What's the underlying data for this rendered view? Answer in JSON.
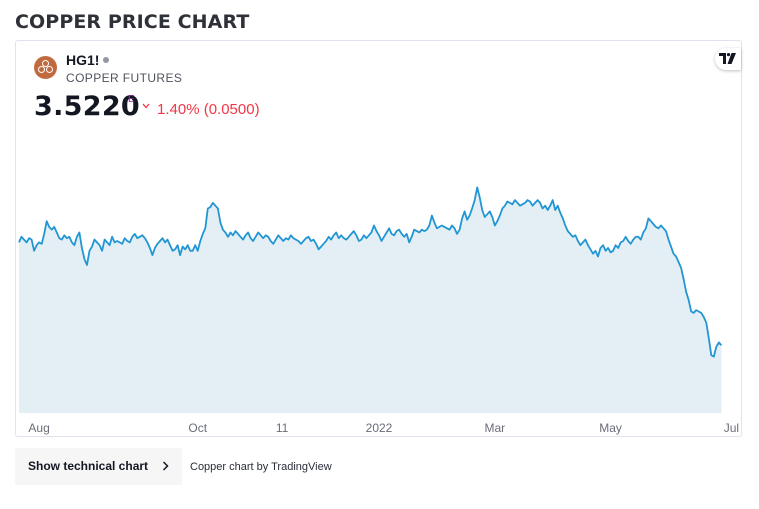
{
  "page": {
    "title": "COPPER PRICE CHART"
  },
  "widget": {
    "symbol": "HG1!",
    "description": "COPPER FUTURES",
    "price": "3.5220",
    "price_suffix": "E",
    "change_direction": "down",
    "change": "1.40% (0.0500)",
    "tv_logo_icon": "tradingview-logo-icon"
  },
  "footer": {
    "button_label": "Show technical chart",
    "button_icon": "chevron-right-icon",
    "attribution": "Copper chart by TradingView"
  },
  "colors": {
    "line": "#2196d3",
    "area": "#e4eff5",
    "down": "#f23645",
    "logo": "#c26a3f"
  },
  "chart_data": {
    "type": "area",
    "x_ticks": [
      "Aug",
      "Oct",
      "11",
      "2022",
      "Mar",
      "May",
      "Jul"
    ],
    "x_tick_positions": [
      8,
      71,
      104.5,
      143,
      189,
      235,
      283
    ],
    "x_range": [
      0,
      286
    ],
    "y_range": [
      3.05,
      5.05
    ],
    "grid": false,
    "legend": "none",
    "series": [
      {
        "points": [
          [
            0,
            4.26
          ],
          [
            1,
            4.3
          ],
          [
            2,
            4.28
          ],
          [
            3,
            4.26
          ],
          [
            4,
            4.29
          ],
          [
            5,
            4.28
          ],
          [
            6,
            4.2
          ],
          [
            7,
            4.24
          ],
          [
            8,
            4.26
          ],
          [
            9,
            4.25
          ],
          [
            10,
            4.32
          ],
          [
            11,
            4.41
          ],
          [
            12,
            4.37
          ],
          [
            13,
            4.35
          ],
          [
            14,
            4.37
          ],
          [
            15,
            4.33
          ],
          [
            16,
            4.29
          ],
          [
            17,
            4.28
          ],
          [
            18,
            4.31
          ],
          [
            19,
            4.29
          ],
          [
            20,
            4.3
          ],
          [
            21,
            4.26
          ],
          [
            22,
            4.24
          ],
          [
            23,
            4.3
          ],
          [
            24,
            4.33
          ],
          [
            25,
            4.22
          ],
          [
            26,
            4.14
          ],
          [
            27,
            4.1
          ],
          [
            28,
            4.2
          ],
          [
            29,
            4.23
          ],
          [
            30,
            4.28
          ],
          [
            31,
            4.26
          ],
          [
            32,
            4.24
          ],
          [
            33,
            4.2
          ],
          [
            34,
            4.28
          ],
          [
            35,
            4.26
          ],
          [
            36,
            4.24
          ],
          [
            37,
            4.3
          ],
          [
            38,
            4.26
          ],
          [
            39,
            4.27
          ],
          [
            40,
            4.26
          ],
          [
            41,
            4.25
          ],
          [
            42,
            4.29
          ],
          [
            43,
            4.27
          ],
          [
            44,
            4.26
          ],
          [
            45,
            4.3
          ],
          [
            46,
            4.32
          ],
          [
            47,
            4.29
          ],
          [
            48,
            4.3
          ],
          [
            49,
            4.31
          ],
          [
            50,
            4.29
          ],
          [
            51,
            4.26
          ],
          [
            52,
            4.22
          ],
          [
            53,
            4.17
          ],
          [
            54,
            4.22
          ],
          [
            55,
            4.25
          ],
          [
            56,
            4.27
          ],
          [
            57,
            4.29
          ],
          [
            58,
            4.26
          ],
          [
            59,
            4.28
          ],
          [
            60,
            4.24
          ],
          [
            61,
            4.2
          ],
          [
            62,
            4.21
          ],
          [
            63,
            4.24
          ],
          [
            64,
            4.17
          ],
          [
            65,
            4.23
          ],
          [
            66,
            4.21
          ],
          [
            67,
            4.24
          ],
          [
            68,
            4.2
          ],
          [
            69,
            4.2
          ],
          [
            70,
            4.24
          ],
          [
            71,
            4.2
          ],
          [
            72,
            4.27
          ],
          [
            73,
            4.32
          ],
          [
            74,
            4.36
          ],
          [
            75,
            4.5
          ],
          [
            76,
            4.51
          ],
          [
            77,
            4.54
          ],
          [
            78,
            4.52
          ],
          [
            79,
            4.5
          ],
          [
            80,
            4.4
          ],
          [
            81,
            4.35
          ],
          [
            82,
            4.33
          ],
          [
            83,
            4.3
          ],
          [
            84,
            4.33
          ],
          [
            85,
            4.31
          ],
          [
            86,
            4.34
          ],
          [
            87,
            4.32
          ],
          [
            88,
            4.3
          ],
          [
            89,
            4.28
          ],
          [
            90,
            4.31
          ],
          [
            91,
            4.33
          ],
          [
            92,
            4.29
          ],
          [
            93,
            4.27
          ],
          [
            94,
            4.3
          ],
          [
            95,
            4.33
          ],
          [
            96,
            4.31
          ],
          [
            97,
            4.29
          ],
          [
            98,
            4.31
          ],
          [
            99,
            4.3
          ],
          [
            100,
            4.27
          ],
          [
            101,
            4.25
          ],
          [
            102,
            4.28
          ],
          [
            103,
            4.31
          ],
          [
            104,
            4.29
          ],
          [
            105,
            4.27
          ],
          [
            106,
            4.29
          ],
          [
            107,
            4.28
          ],
          [
            108,
            4.31
          ],
          [
            109,
            4.29
          ],
          [
            110,
            4.28
          ],
          [
            111,
            4.27
          ],
          [
            112,
            4.25
          ],
          [
            113,
            4.27
          ],
          [
            114,
            4.29
          ],
          [
            115,
            4.3
          ],
          [
            116,
            4.27
          ],
          [
            117,
            4.28
          ],
          [
            118,
            4.25
          ],
          [
            119,
            4.21
          ],
          [
            120,
            4.23
          ],
          [
            121,
            4.25
          ],
          [
            122,
            4.27
          ],
          [
            123,
            4.3
          ],
          [
            124,
            4.28
          ],
          [
            125,
            4.31
          ],
          [
            126,
            4.33
          ],
          [
            127,
            4.29
          ],
          [
            128,
            4.31
          ],
          [
            129,
            4.29
          ],
          [
            130,
            4.28
          ],
          [
            131,
            4.3
          ],
          [
            132,
            4.32
          ],
          [
            133,
            4.34
          ],
          [
            134,
            4.31
          ],
          [
            135,
            4.27
          ],
          [
            136,
            4.28
          ],
          [
            137,
            4.31
          ],
          [
            138,
            4.29
          ],
          [
            139,
            4.31
          ],
          [
            140,
            4.33
          ],
          [
            141,
            4.38
          ],
          [
            142,
            4.34
          ],
          [
            143,
            4.31
          ],
          [
            144,
            4.27
          ],
          [
            145,
            4.3
          ],
          [
            146,
            4.33
          ],
          [
            147,
            4.36
          ],
          [
            148,
            4.32
          ],
          [
            149,
            4.31
          ],
          [
            150,
            4.34
          ],
          [
            151,
            4.35
          ],
          [
            152,
            4.32
          ],
          [
            153,
            4.3
          ],
          [
            154,
            4.32
          ],
          [
            155,
            4.26
          ],
          [
            156,
            4.3
          ],
          [
            157,
            4.35
          ],
          [
            158,
            4.34
          ],
          [
            159,
            4.33
          ],
          [
            160,
            4.35
          ],
          [
            161,
            4.34
          ],
          [
            162,
            4.35
          ],
          [
            163,
            4.38
          ],
          [
            164,
            4.45
          ],
          [
            165,
            4.4
          ],
          [
            166,
            4.36
          ],
          [
            167,
            4.37
          ],
          [
            168,
            4.38
          ],
          [
            169,
            4.37
          ],
          [
            170,
            4.36
          ],
          [
            171,
            4.35
          ],
          [
            172,
            4.38
          ],
          [
            173,
            4.36
          ],
          [
            174,
            4.32
          ],
          [
            175,
            4.35
          ],
          [
            176,
            4.43
          ],
          [
            177,
            4.48
          ],
          [
            178,
            4.42
          ],
          [
            179,
            4.45
          ],
          [
            180,
            4.5
          ],
          [
            181,
            4.56
          ],
          [
            182,
            4.65
          ],
          [
            183,
            4.58
          ],
          [
            184,
            4.49
          ],
          [
            185,
            4.44
          ],
          [
            186,
            4.46
          ],
          [
            187,
            4.48
          ],
          [
            188,
            4.44
          ],
          [
            189,
            4.38
          ],
          [
            190,
            4.41
          ],
          [
            191,
            4.45
          ],
          [
            192,
            4.5
          ],
          [
            193,
            4.52
          ],
          [
            194,
            4.55
          ],
          [
            195,
            4.54
          ],
          [
            196,
            4.53
          ],
          [
            197,
            4.56
          ],
          [
            198,
            4.54
          ],
          [
            199,
            4.52
          ],
          [
            200,
            4.53
          ],
          [
            201,
            4.54
          ],
          [
            202,
            4.56
          ],
          [
            203,
            4.55
          ],
          [
            204,
            4.52
          ],
          [
            205,
            4.54
          ],
          [
            206,
            4.56
          ],
          [
            207,
            4.54
          ],
          [
            208,
            4.5
          ],
          [
            209,
            4.52
          ],
          [
            210,
            4.49
          ],
          [
            211,
            4.52
          ],
          [
            212,
            4.56
          ],
          [
            213,
            4.49
          ],
          [
            214,
            4.52
          ],
          [
            215,
            4.47
          ],
          [
            216,
            4.43
          ],
          [
            217,
            4.38
          ],
          [
            218,
            4.34
          ],
          [
            219,
            4.32
          ],
          [
            220,
            4.3
          ],
          [
            221,
            4.31
          ],
          [
            222,
            4.27
          ],
          [
            223,
            4.24
          ],
          [
            224,
            4.26
          ],
          [
            225,
            4.28
          ],
          [
            226,
            4.24
          ],
          [
            227,
            4.21
          ],
          [
            228,
            4.18
          ],
          [
            229,
            4.2
          ],
          [
            230,
            4.16
          ],
          [
            231,
            4.22
          ],
          [
            232,
            4.24
          ],
          [
            233,
            4.2
          ],
          [
            234,
            4.22
          ],
          [
            235,
            4.19
          ],
          [
            236,
            4.2
          ],
          [
            237,
            4.24
          ],
          [
            238,
            4.22
          ],
          [
            239,
            4.26
          ],
          [
            240,
            4.27
          ],
          [
            241,
            4.3
          ],
          [
            242,
            4.27
          ],
          [
            243,
            4.25
          ],
          [
            244,
            4.28
          ],
          [
            245,
            4.3
          ],
          [
            246,
            4.3
          ],
          [
            247,
            4.28
          ],
          [
            248,
            4.33
          ],
          [
            249,
            4.36
          ],
          [
            250,
            4.43
          ],
          [
            251,
            4.41
          ],
          [
            252,
            4.39
          ],
          [
            253,
            4.37
          ],
          [
            254,
            4.36
          ],
          [
            255,
            4.38
          ],
          [
            256,
            4.36
          ],
          [
            257,
            4.34
          ],
          [
            258,
            4.28
          ],
          [
            259,
            4.23
          ],
          [
            260,
            4.18
          ],
          [
            261,
            4.16
          ],
          [
            262,
            4.12
          ],
          [
            263,
            4.08
          ],
          [
            264,
            4.0
          ],
          [
            265,
            3.91
          ],
          [
            266,
            3.85
          ],
          [
            267,
            3.77
          ],
          [
            268,
            3.76
          ],
          [
            269,
            3.78
          ],
          [
            270,
            3.77
          ],
          [
            271,
            3.76
          ],
          [
            272,
            3.73
          ],
          [
            273,
            3.69
          ],
          [
            274,
            3.58
          ],
          [
            275,
            3.46
          ],
          [
            276,
            3.45
          ],
          [
            277,
            3.52
          ],
          [
            278,
            3.55
          ],
          [
            279,
            3.53
          ]
        ]
      }
    ]
  }
}
